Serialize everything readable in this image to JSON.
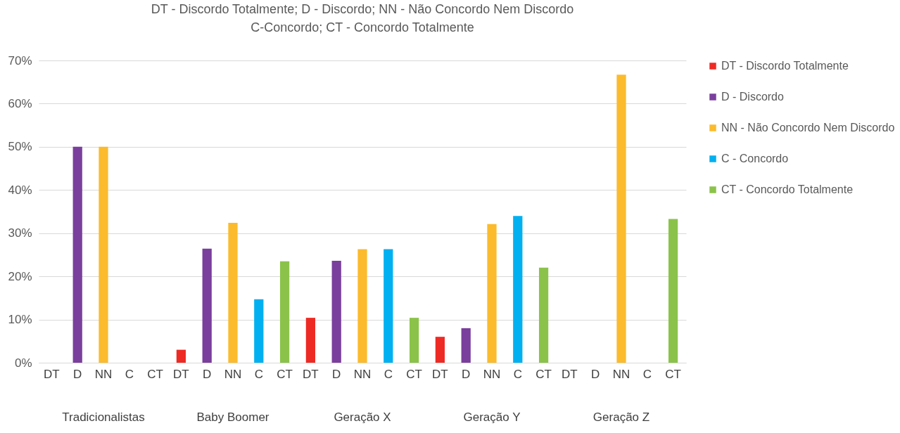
{
  "chart_data": {
    "type": "bar",
    "title": "DT - Discordo Totalmente; D - Discordo; NN - Não Concordo Nem Discordo\nC-Concordo; CT - Concordo Totalmente",
    "categories": [
      "DT",
      "D",
      "NN",
      "C",
      "CT",
      "DT",
      "D",
      "NN",
      "C",
      "CT",
      "DT",
      "D",
      "NN",
      "C",
      "CT",
      "DT",
      "D",
      "NN",
      "C",
      "CT",
      "DT",
      "D",
      "NN",
      "C",
      "CT"
    ],
    "series": [
      {
        "name": "DT - Discordo Totalmente",
        "color": "#ee2a24",
        "values": [
          0,
          null,
          null,
          null,
          null,
          3,
          null,
          null,
          null,
          null,
          10.4,
          null,
          null,
          null,
          null,
          6,
          null,
          null,
          null,
          null,
          0,
          null,
          null,
          null,
          null
        ]
      },
      {
        "name": "D - Discordo",
        "color": "#7a3f9d",
        "values": [
          null,
          50,
          null,
          null,
          null,
          null,
          26.4,
          null,
          null,
          null,
          null,
          23.6,
          null,
          null,
          null,
          null,
          8,
          null,
          null,
          null,
          null,
          0,
          null,
          null,
          null
        ]
      },
      {
        "name": "NN - Não Concordo Nem Discordo",
        "color": "#fbbb2c",
        "values": [
          null,
          null,
          50,
          null,
          null,
          null,
          null,
          32.4,
          null,
          null,
          null,
          null,
          26.3,
          null,
          null,
          null,
          null,
          32.1,
          null,
          null,
          null,
          null,
          66.7,
          null,
          null
        ]
      },
      {
        "name": "C - Concordo",
        "color": "#00b0f0",
        "values": [
          null,
          null,
          null,
          0,
          null,
          null,
          null,
          null,
          14.7,
          null,
          null,
          null,
          null,
          26.3,
          null,
          null,
          null,
          null,
          34,
          null,
          null,
          null,
          null,
          0,
          null
        ]
      },
      {
        "name": "CT - Concordo Totalmente",
        "color": "#8bc34a",
        "values": [
          null,
          null,
          null,
          null,
          0,
          null,
          null,
          null,
          null,
          23.5,
          null,
          null,
          null,
          null,
          10.4,
          null,
          null,
          null,
          null,
          22,
          null,
          null,
          null,
          null,
          33.3
        ]
      }
    ],
    "annotations": [
      "Tradicionalistas",
      "Baby Boomer",
      "Geração X",
      "Geração Y",
      "Geração Z"
    ],
    "ylim": [
      0,
      70
    ],
    "yticks": [
      {
        "value": 0,
        "label": "0%"
      },
      {
        "value": 10,
        "label": "10%"
      },
      {
        "value": 20,
        "label": "20%"
      },
      {
        "value": 30,
        "label": "30%"
      },
      {
        "value": 40,
        "label": "40%"
      },
      {
        "value": 50,
        "label": "50%"
      },
      {
        "value": 60,
        "label": "60%"
      },
      {
        "value": 70,
        "label": "70%"
      }
    ],
    "grid": "y",
    "legend": "right"
  }
}
